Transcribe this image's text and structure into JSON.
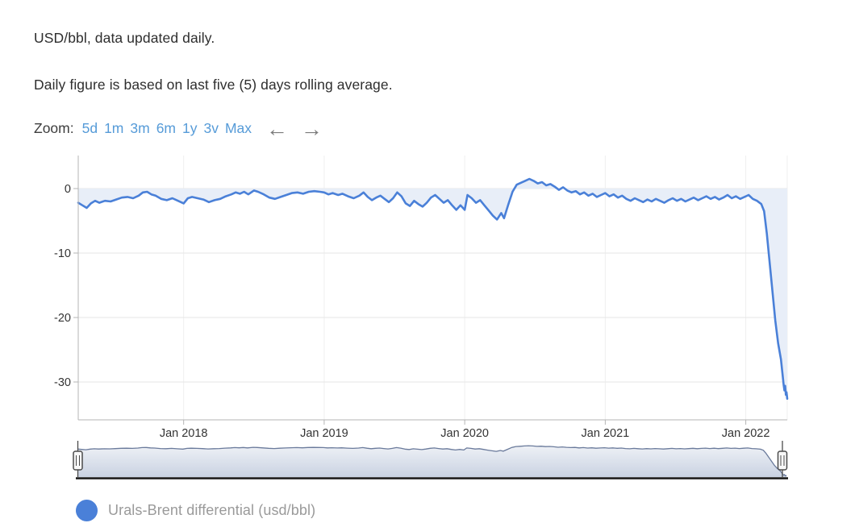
{
  "header": {
    "line1": "USD/bbl, data updated daily.",
    "line2": "Daily figure is based on last five (5) days rolling average."
  },
  "zoom_bar": {
    "label": "Zoom:",
    "buttons": [
      "5d",
      "1m",
      "3m",
      "6m",
      "1y",
      "3v",
      "Max"
    ],
    "pan_left_icon": "←",
    "pan_right_icon": "→"
  },
  "legend": {
    "label": "Urals-Brent differential (usd/bbl)",
    "marker_color": "#4a80d8"
  },
  "colors": {
    "link": "#569bd8",
    "heading_text": "#2e2e2e",
    "tick_text": "#333333",
    "grid_h": "#e6e6e6",
    "grid_v": "#efefef",
    "axis_line": "#b5b5b5",
    "series_line": "#4a80d8",
    "series_fill": "#e8eef8",
    "nav_line": "#6a7a9b",
    "nav_fill_top": "#eef1f6",
    "nav_fill_bottom": "#c9d2e2",
    "nav_scrollbar": "#141414",
    "nav_handle_fill": "#f8f8f8",
    "nav_handle_stroke": "#4a4a4a",
    "legend_text": "#9a9a9a",
    "arrow": "#7a7a7a"
  },
  "chart_data": {
    "type": "area",
    "title": "",
    "xlabel": "",
    "ylabel": "",
    "grid": true,
    "legend_position": "bottom-left",
    "threshold": 0,
    "xlim": [
      2017.25,
      2022.295
    ],
    "ylim": [
      -35.875,
      5.125
    ],
    "y_ticks": [
      0,
      -10,
      -20,
      -30
    ],
    "x_ticks": [
      {
        "t": 2018,
        "label": "Jan 2018"
      },
      {
        "t": 2019,
        "label": "Jan 2019"
      },
      {
        "t": 2020,
        "label": "Jan 2020"
      },
      {
        "t": 2021,
        "label": "Jan 2021"
      },
      {
        "t": 2022,
        "label": "Jan 2022"
      }
    ],
    "navigator": {
      "ylim": [
        -33.5,
        2.5
      ]
    },
    "series": [
      {
        "name": "Urals-Brent differential (usd/bbl)",
        "color": "#4a80d8",
        "fill": "#e8eef8",
        "points": [
          [
            2017.25,
            -2.2
          ],
          [
            2017.28,
            -2.6
          ],
          [
            2017.31,
            -3.0
          ],
          [
            2017.34,
            -2.3
          ],
          [
            2017.37,
            -1.9
          ],
          [
            2017.4,
            -2.2
          ],
          [
            2017.44,
            -1.9
          ],
          [
            2017.48,
            -2.0
          ],
          [
            2017.52,
            -1.7
          ],
          [
            2017.56,
            -1.4
          ],
          [
            2017.6,
            -1.3
          ],
          [
            2017.64,
            -1.5
          ],
          [
            2017.68,
            -1.1
          ],
          [
            2017.71,
            -0.6
          ],
          [
            2017.74,
            -0.5
          ],
          [
            2017.77,
            -0.9
          ],
          [
            2017.8,
            -1.1
          ],
          [
            2017.84,
            -1.6
          ],
          [
            2017.88,
            -1.8
          ],
          [
            2017.92,
            -1.5
          ],
          [
            2017.96,
            -1.9
          ],
          [
            2018.0,
            -2.3
          ],
          [
            2018.03,
            -1.5
          ],
          [
            2018.06,
            -1.3
          ],
          [
            2018.1,
            -1.5
          ],
          [
            2018.14,
            -1.7
          ],
          [
            2018.18,
            -2.1
          ],
          [
            2018.22,
            -1.8
          ],
          [
            2018.26,
            -1.6
          ],
          [
            2018.3,
            -1.2
          ],
          [
            2018.34,
            -0.9
          ],
          [
            2018.37,
            -0.6
          ],
          [
            2018.4,
            -0.8
          ],
          [
            2018.43,
            -0.5
          ],
          [
            2018.46,
            -0.9
          ],
          [
            2018.5,
            -0.3
          ],
          [
            2018.53,
            -0.5
          ],
          [
            2018.57,
            -0.9
          ],
          [
            2018.61,
            -1.4
          ],
          [
            2018.65,
            -1.6
          ],
          [
            2018.69,
            -1.3
          ],
          [
            2018.73,
            -1.0
          ],
          [
            2018.77,
            -0.7
          ],
          [
            2018.81,
            -0.6
          ],
          [
            2018.85,
            -0.8
          ],
          [
            2018.89,
            -0.5
          ],
          [
            2018.93,
            -0.4
          ],
          [
            2018.97,
            -0.5
          ],
          [
            2019.0,
            -0.6
          ],
          [
            2019.03,
            -0.9
          ],
          [
            2019.06,
            -0.7
          ],
          [
            2019.1,
            -1.0
          ],
          [
            2019.13,
            -0.8
          ],
          [
            2019.17,
            -1.2
          ],
          [
            2019.21,
            -1.5
          ],
          [
            2019.25,
            -1.1
          ],
          [
            2019.28,
            -0.6
          ],
          [
            2019.31,
            -1.3
          ],
          [
            2019.34,
            -1.8
          ],
          [
            2019.37,
            -1.4
          ],
          [
            2019.4,
            -1.1
          ],
          [
            2019.43,
            -1.6
          ],
          [
            2019.46,
            -2.1
          ],
          [
            2019.49,
            -1.5
          ],
          [
            2019.52,
            -0.6
          ],
          [
            2019.55,
            -1.2
          ],
          [
            2019.58,
            -2.3
          ],
          [
            2019.61,
            -2.7
          ],
          [
            2019.64,
            -1.9
          ],
          [
            2019.67,
            -2.4
          ],
          [
            2019.7,
            -2.8
          ],
          [
            2019.73,
            -2.2
          ],
          [
            2019.76,
            -1.4
          ],
          [
            2019.79,
            -1.0
          ],
          [
            2019.82,
            -1.6
          ],
          [
            2019.85,
            -2.2
          ],
          [
            2019.88,
            -1.8
          ],
          [
            2019.91,
            -2.6
          ],
          [
            2019.94,
            -3.3
          ],
          [
            2019.97,
            -2.6
          ],
          [
            2020.0,
            -3.3
          ],
          [
            2020.02,
            -1.0
          ],
          [
            2020.05,
            -1.5
          ],
          [
            2020.08,
            -2.2
          ],
          [
            2020.11,
            -1.8
          ],
          [
            2020.14,
            -2.6
          ],
          [
            2020.17,
            -3.4
          ],
          [
            2020.2,
            -4.2
          ],
          [
            2020.23,
            -4.8
          ],
          [
            2020.26,
            -3.8
          ],
          [
            2020.28,
            -4.6
          ],
          [
            2020.31,
            -2.5
          ],
          [
            2020.34,
            -0.5
          ],
          [
            2020.37,
            0.6
          ],
          [
            2020.4,
            0.9
          ],
          [
            2020.43,
            1.2
          ],
          [
            2020.46,
            1.5
          ],
          [
            2020.49,
            1.2
          ],
          [
            2020.52,
            0.8
          ],
          [
            2020.55,
            1.0
          ],
          [
            2020.58,
            0.5
          ],
          [
            2020.61,
            0.7
          ],
          [
            2020.64,
            0.3
          ],
          [
            2020.67,
            -0.2
          ],
          [
            2020.7,
            0.2
          ],
          [
            2020.73,
            -0.3
          ],
          [
            2020.76,
            -0.6
          ],
          [
            2020.79,
            -0.4
          ],
          [
            2020.82,
            -0.9
          ],
          [
            2020.85,
            -0.6
          ],
          [
            2020.88,
            -1.1
          ],
          [
            2020.91,
            -0.8
          ],
          [
            2020.94,
            -1.3
          ],
          [
            2020.97,
            -1.0
          ],
          [
            2021.0,
            -0.7
          ],
          [
            2021.03,
            -1.2
          ],
          [
            2021.06,
            -0.9
          ],
          [
            2021.09,
            -1.4
          ],
          [
            2021.12,
            -1.1
          ],
          [
            2021.15,
            -1.6
          ],
          [
            2021.18,
            -1.9
          ],
          [
            2021.21,
            -1.5
          ],
          [
            2021.24,
            -1.8
          ],
          [
            2021.27,
            -2.1
          ],
          [
            2021.3,
            -1.7
          ],
          [
            2021.33,
            -2.0
          ],
          [
            2021.36,
            -1.6
          ],
          [
            2021.39,
            -1.9
          ],
          [
            2021.42,
            -2.2
          ],
          [
            2021.45,
            -1.8
          ],
          [
            2021.48,
            -1.5
          ],
          [
            2021.51,
            -1.9
          ],
          [
            2021.54,
            -1.6
          ],
          [
            2021.57,
            -2.0
          ],
          [
            2021.6,
            -1.7
          ],
          [
            2021.63,
            -1.4
          ],
          [
            2021.66,
            -1.8
          ],
          [
            2021.69,
            -1.5
          ],
          [
            2021.72,
            -1.2
          ],
          [
            2021.75,
            -1.6
          ],
          [
            2021.78,
            -1.3
          ],
          [
            2021.81,
            -1.7
          ],
          [
            2021.84,
            -1.4
          ],
          [
            2021.87,
            -1.0
          ],
          [
            2021.9,
            -1.5
          ],
          [
            2021.93,
            -1.2
          ],
          [
            2021.96,
            -1.6
          ],
          [
            2021.99,
            -1.3
          ],
          [
            2022.02,
            -1.0
          ],
          [
            2022.05,
            -1.6
          ],
          [
            2022.08,
            -1.9
          ],
          [
            2022.11,
            -2.4
          ],
          [
            2022.13,
            -3.5
          ],
          [
            2022.15,
            -7.0
          ],
          [
            2022.17,
            -11.5
          ],
          [
            2022.19,
            -16.0
          ],
          [
            2022.21,
            -20.5
          ],
          [
            2022.23,
            -24.0
          ],
          [
            2022.25,
            -26.5
          ],
          [
            2022.26,
            -28.5
          ],
          [
            2022.27,
            -30.5
          ],
          [
            2022.275,
            -31.3
          ],
          [
            2022.28,
            -30.6
          ],
          [
            2022.285,
            -32.0
          ],
          [
            2022.29,
            -31.6
          ],
          [
            2022.295,
            -32.6
          ]
        ]
      }
    ]
  }
}
